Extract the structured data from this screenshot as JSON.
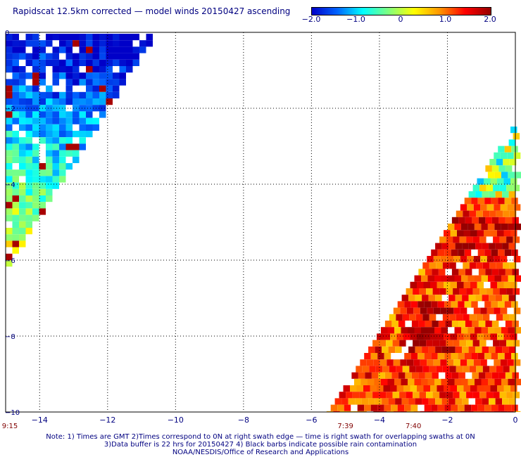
{
  "title": "Rapidscat 12.5km corrected — model winds 20150427 ascending",
  "colorbar": {
    "min": -2.0,
    "max": 2.0,
    "tick_labels": [
      "−2.0",
      "−1.0",
      "0",
      "1.0",
      "2.0"
    ],
    "tick_values": [
      -2.0,
      -1.0,
      0,
      1.0,
      2.0
    ],
    "colors": [
      "#0000c8",
      "#0064ff",
      "#00ffff",
      "#7fff7f",
      "#ffff00",
      "#ff9600",
      "#ff0000",
      "#960000"
    ]
  },
  "axes": {
    "x_range": [
      -15,
      0
    ],
    "y_range": [
      -10,
      0
    ],
    "x_tick_values": [
      -14,
      -12,
      -10,
      -8,
      -6,
      -4,
      -2,
      0
    ],
    "x_tick_labels": [
      "−14",
      "−12",
      "−10",
      "−8",
      "−6",
      "−4",
      "−2",
      "0"
    ],
    "y_tick_values": [
      0,
      -2,
      -4,
      -6,
      -8,
      -10
    ],
    "y_tick_labels": [
      "0",
      "−2",
      "−4",
      "−6",
      "−8",
      "−10"
    ],
    "grid": true
  },
  "swath_times": [
    {
      "label": "9:15",
      "x": -15.0
    },
    {
      "label": "7:39",
      "x": -5.0
    },
    {
      "label": "7:40",
      "x": -3.0
    }
  ],
  "notes": {
    "line1": "Note: 1) Times are GMT 2)Times correspond to 0N at right swath edge — time is right swath for overlapping swaths at 0N",
    "line2": "3)Data buffer is 22 hrs for 20150427 4) Black barbs indicate possible rain contamination",
    "line3": "NOAA/NESDIS/Office of Research and Applications"
  }
}
